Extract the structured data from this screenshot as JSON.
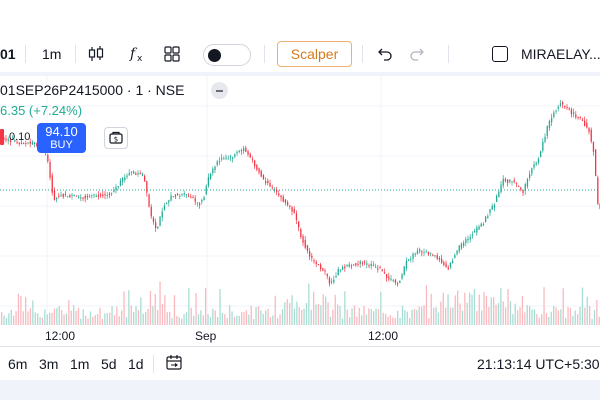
{
  "toolbar": {
    "symbol_code": "01",
    "interval": "1m",
    "scalper_label": "Scalper",
    "account_label": "MIRAELAY..."
  },
  "legend": {
    "symbol_line": "01SEP26P2415000 · 1 · NSE",
    "change": "6.35 (+7.24%)",
    "spread": "0.10",
    "buy_price": "94.10",
    "buy_label": "BUY"
  },
  "chart_data": {
    "type": "candlestick",
    "title": "",
    "x_tick_labels": [
      "12:00",
      "Sep",
      "12:00"
    ],
    "grid": true,
    "volume_bars": true,
    "colors": {
      "up": "#22ab94",
      "down": "#f23645",
      "reference_line": "#22ab94"
    },
    "price_path_points": [
      [
        0,
        138
      ],
      [
        20,
        142
      ],
      [
        45,
        145
      ],
      [
        50,
        165
      ],
      [
        55,
        200
      ],
      [
        60,
        195
      ],
      [
        80,
        197
      ],
      [
        95,
        196
      ],
      [
        110,
        195
      ],
      [
        120,
        185
      ],
      [
        130,
        172
      ],
      [
        145,
        175
      ],
      [
        152,
        215
      ],
      [
        158,
        232
      ],
      [
        165,
        205
      ],
      [
        175,
        195
      ],
      [
        190,
        195
      ],
      [
        200,
        205
      ],
      [
        205,
        198
      ],
      [
        210,
        178
      ],
      [
        220,
        160
      ],
      [
        232,
        158
      ],
      [
        240,
        152
      ],
      [
        245,
        148
      ],
      [
        255,
        162
      ],
      [
        265,
        180
      ],
      [
        280,
        195
      ],
      [
        295,
        212
      ],
      [
        302,
        235
      ],
      [
        312,
        258
      ],
      [
        325,
        270
      ],
      [
        332,
        285
      ],
      [
        340,
        270
      ],
      [
        350,
        265
      ],
      [
        365,
        263
      ],
      [
        380,
        268
      ],
      [
        392,
        280
      ],
      [
        400,
        283
      ],
      [
        408,
        262
      ],
      [
        420,
        250
      ],
      [
        435,
        255
      ],
      [
        450,
        268
      ],
      [
        460,
        248
      ],
      [
        470,
        238
      ],
      [
        485,
        222
      ],
      [
        495,
        205
      ],
      [
        505,
        180
      ],
      [
        515,
        182
      ],
      [
        525,
        192
      ],
      [
        530,
        175
      ],
      [
        540,
        158
      ],
      [
        548,
        130
      ],
      [
        555,
        112
      ],
      [
        562,
        103
      ],
      [
        570,
        110
      ],
      [
        580,
        118
      ],
      [
        590,
        128
      ],
      [
        595,
        150
      ],
      [
        600,
        210
      ]
    ]
  },
  "time_ranges": [
    "6m",
    "3m",
    "1m",
    "5d",
    "1d"
  ],
  "status": {
    "clock": "21:13:14 UTC+5:30"
  },
  "icons": {
    "chart_type": "candles-icon",
    "indicators": "fx-icon",
    "layouts": "grid-icon",
    "undo": "undo-icon",
    "redo": "redo-icon",
    "cash": "cash-icon",
    "date_range": "calendar-icon"
  }
}
